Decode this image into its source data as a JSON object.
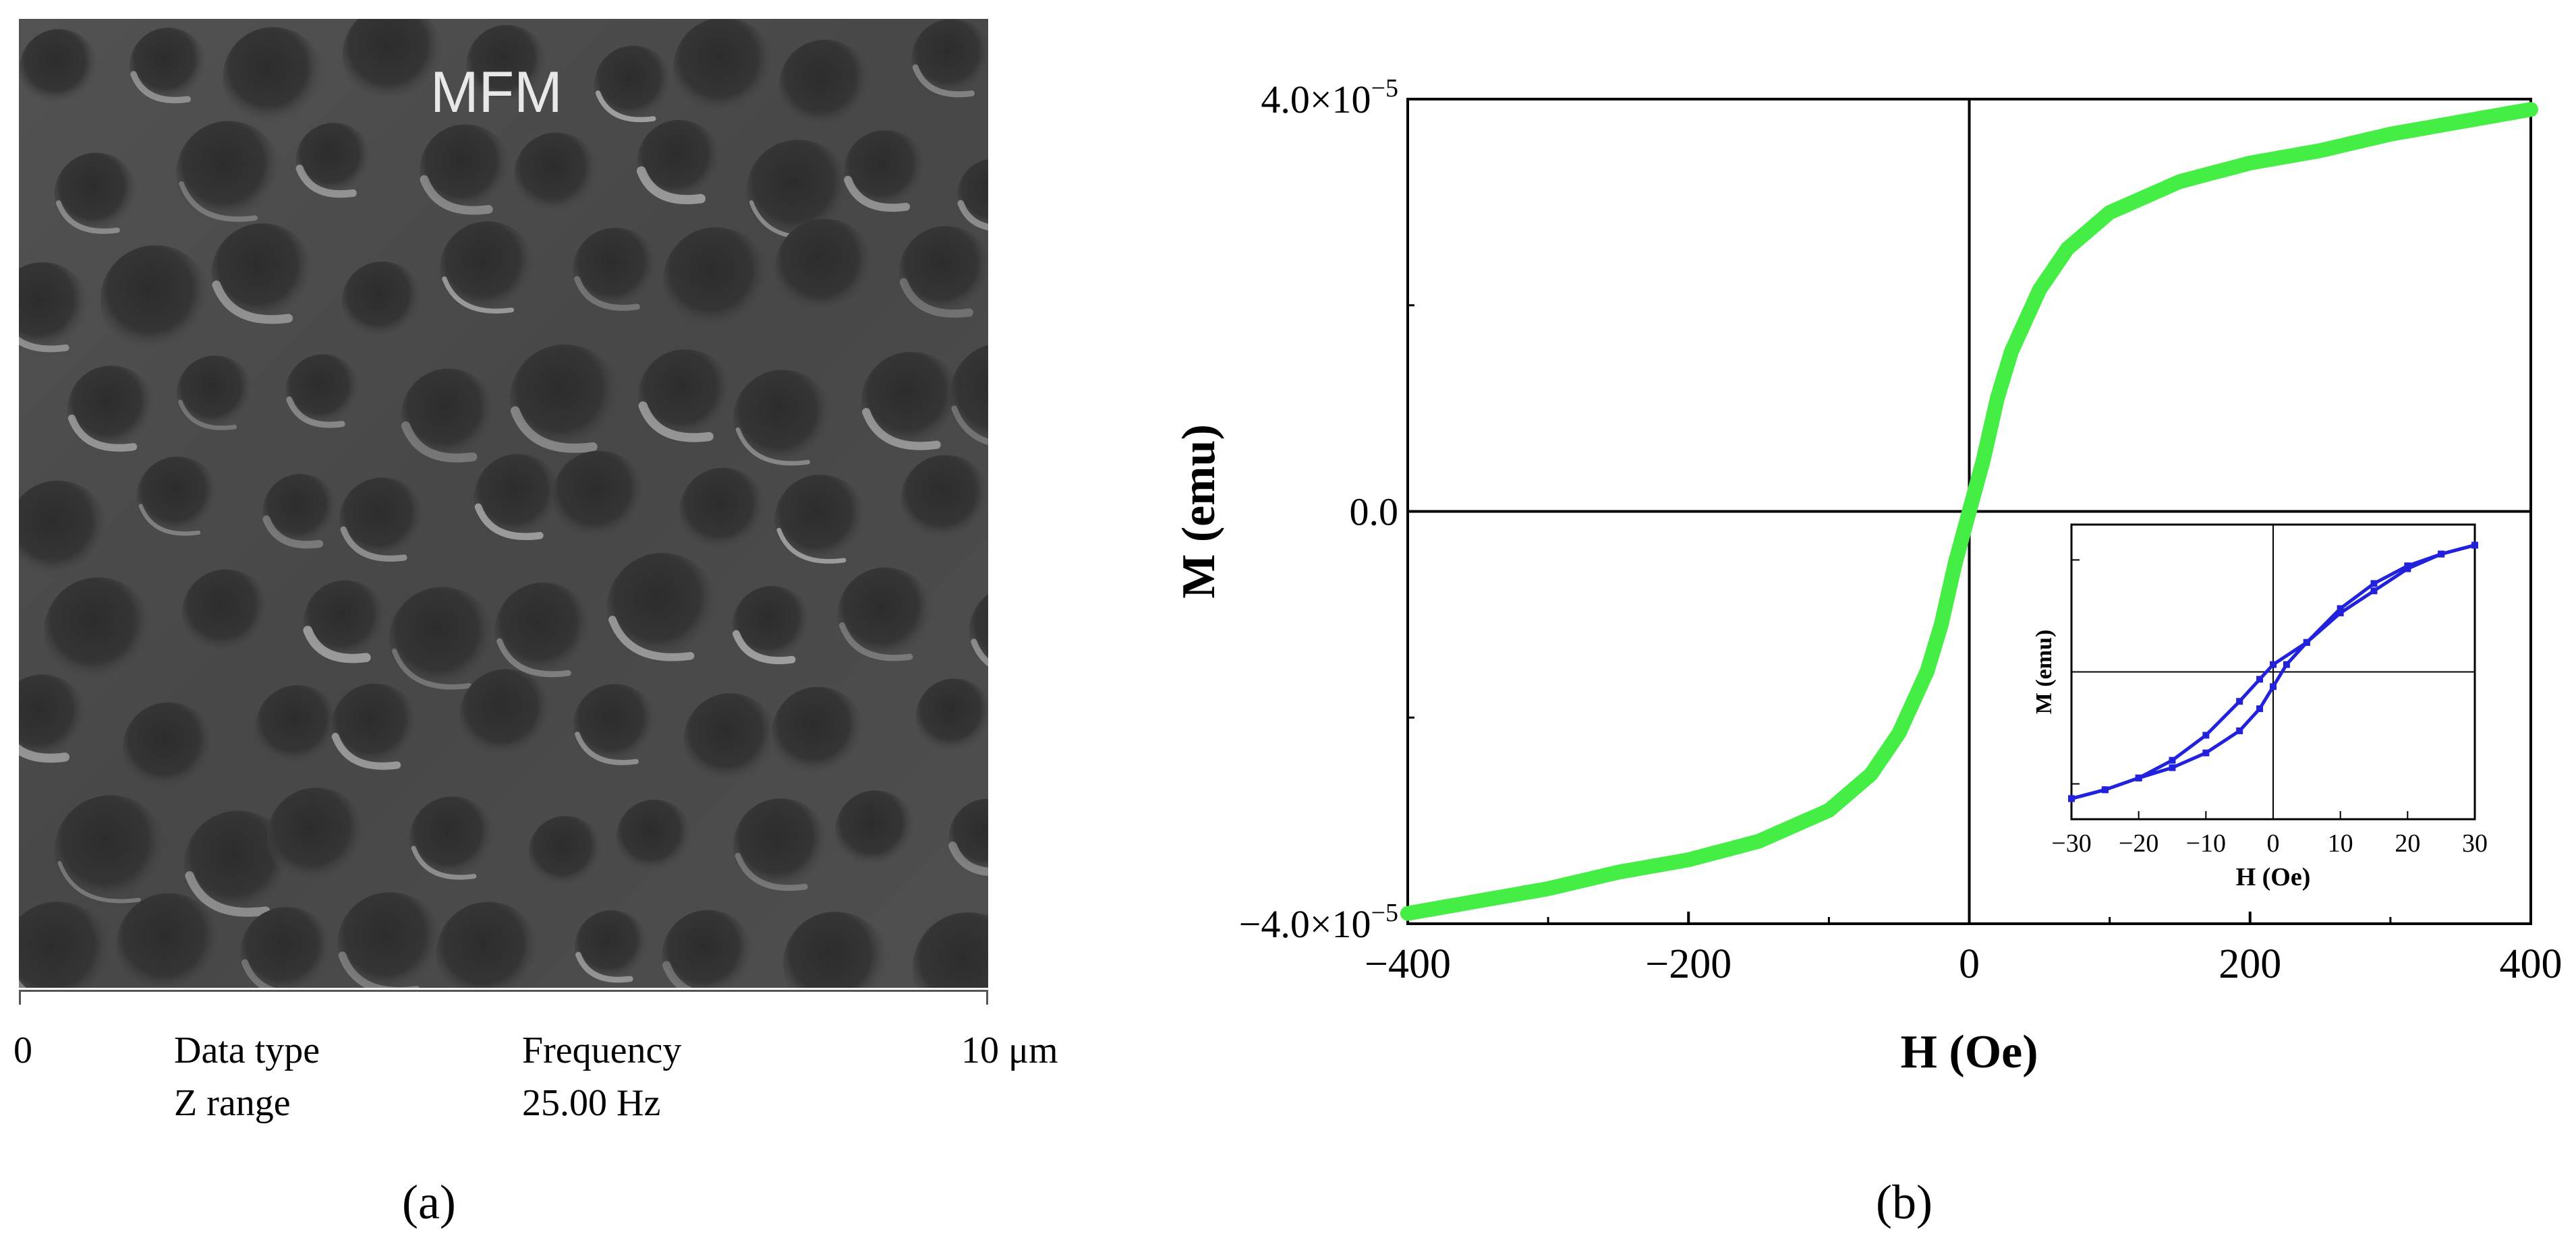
{
  "panel_a": {
    "title": "MFM",
    "scale_start": "0",
    "scale_end": "10 μm",
    "info_label_1": "Data type",
    "info_value_1": "Frequency",
    "info_label_2": "Z range",
    "info_value_2": "25.00 Hz",
    "caption": "(a)"
  },
  "panel_b": {
    "caption": "(b)"
  },
  "chart_data": [
    {
      "type": "line",
      "title": "",
      "xlabel": "H (Oe)",
      "ylabel": "M (emu)",
      "xlim": [
        -400,
        400
      ],
      "ylim": [
        -4e-05,
        4e-05
      ],
      "x_ticks": [
        "−400",
        "−200",
        "0",
        "200",
        "400"
      ],
      "y_ticks": [
        "−4.0×10",
        "0.0",
        "4.0×10"
      ],
      "y_tick_exponent": "−5",
      "color": "#44ee44",
      "series": [
        {
          "x": [
            -400,
            -350,
            -300,
            -250,
            -200,
            -150,
            -100,
            -70,
            -50,
            -30,
            -20,
            -10,
            0,
            10,
            20,
            30,
            50,
            70,
            100,
            150,
            200,
            250,
            300,
            350,
            400
          ],
          "y": [
            -3.9e-05,
            -3.78e-05,
            -3.66e-05,
            -3.5e-05,
            -3.38e-05,
            -3.2e-05,
            -2.9e-05,
            -2.55e-05,
            -2.15e-05,
            -1.55e-05,
            -1.1e-05,
            -5e-06,
            0.0,
            5e-06,
            1.1e-05,
            1.55e-05,
            2.15e-05,
            2.55e-05,
            2.9e-05,
            3.2e-05,
            3.38e-05,
            3.5e-05,
            3.66e-05,
            3.78e-05,
            3.9e-05
          ]
        }
      ]
    },
    {
      "type": "line",
      "title": "",
      "xlabel": "H (Oe)",
      "ylabel": "M (emu)",
      "xlim": [
        -30,
        30
      ],
      "x_ticks": [
        "−30",
        "−20",
        "−10",
        "0",
        "10",
        "20",
        "30"
      ],
      "color": "#2222dd",
      "series": [
        {
          "x": [
            30,
            25,
            20,
            15,
            10,
            5,
            0,
            -2,
            -5,
            -10,
            -15,
            -20,
            -25,
            -30
          ],
          "y": [
            0.86,
            0.8,
            0.7,
            0.55,
            0.4,
            0.2,
            0.05,
            -0.05,
            -0.2,
            -0.43,
            -0.6,
            -0.72,
            -0.8,
            -0.86
          ]
        },
        {
          "x": [
            -30,
            -25,
            -20,
            -15,
            -10,
            -5,
            -2,
            0,
            2,
            5,
            10,
            15,
            20,
            25,
            30
          ],
          "y": [
            -0.86,
            -0.8,
            -0.72,
            -0.65,
            -0.55,
            -0.4,
            -0.25,
            -0.1,
            0.05,
            0.2,
            0.43,
            0.6,
            0.72,
            0.8,
            0.86
          ]
        }
      ]
    }
  ]
}
